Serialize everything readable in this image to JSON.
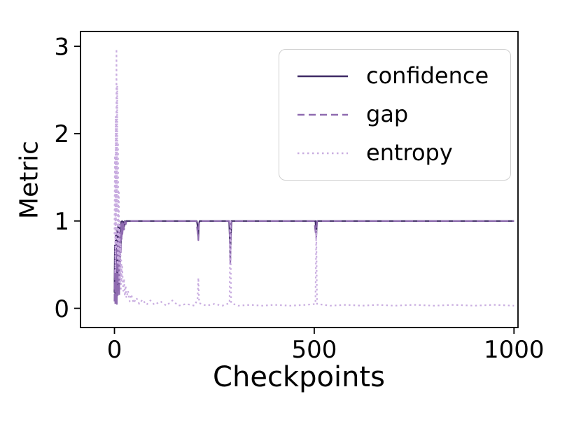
{
  "figure": {
    "background": "#ffffff"
  },
  "chart_data": {
    "type": "line",
    "title": "",
    "xlabel": "Checkpoints",
    "ylabel": "Metric",
    "xlim": [
      -85,
      1010
    ],
    "ylim": [
      -0.22,
      3.17
    ],
    "xticks": [
      0,
      500,
      1000
    ],
    "yticks": [
      0,
      1,
      2,
      3
    ],
    "grid": false,
    "legend": {
      "position": "upper right",
      "entries": [
        "confidence",
        "gap",
        "entropy"
      ]
    },
    "axis_color": "#000000",
    "series": [
      {
        "name": "confidence",
        "color": "#3f2a66",
        "style": "solid",
        "points": [
          [
            0,
            0.18
          ],
          [
            1,
            0.72
          ],
          [
            2,
            0.1
          ],
          [
            3,
            0.85
          ],
          [
            4,
            0.15
          ],
          [
            5,
            0.62
          ],
          [
            6,
            0.06
          ],
          [
            7,
            0.9
          ],
          [
            8,
            0.2
          ],
          [
            9,
            0.95
          ],
          [
            10,
            0.32
          ],
          [
            11,
            0.88
          ],
          [
            12,
            0.24
          ],
          [
            13,
            0.96
          ],
          [
            14,
            0.5
          ],
          [
            15,
            0.93
          ],
          [
            16,
            0.72
          ],
          [
            17,
            0.99
          ],
          [
            18,
            0.84
          ],
          [
            19,
            1.0
          ],
          [
            20,
            0.9
          ],
          [
            22,
            0.99
          ],
          [
            24,
            0.93
          ],
          [
            26,
            1.0
          ],
          [
            28,
            0.98
          ],
          [
            30,
            1.0
          ],
          [
            40,
            1.0
          ],
          [
            60,
            1.0
          ],
          [
            80,
            1.0
          ],
          [
            100,
            1.0
          ],
          [
            140,
            1.0
          ],
          [
            180,
            1.0
          ],
          [
            206,
            1.0
          ],
          [
            209,
            0.92
          ],
          [
            210,
            0.8
          ],
          [
            211,
            0.95
          ],
          [
            213,
            1.0
          ],
          [
            260,
            1.0
          ],
          [
            287,
            1.0
          ],
          [
            289,
            0.75
          ],
          [
            290,
            0.55
          ],
          [
            291,
            0.8
          ],
          [
            293,
            1.0
          ],
          [
            350,
            1.0
          ],
          [
            430,
            1.0
          ],
          [
            500,
            1.0
          ],
          [
            503,
            1.0
          ],
          [
            505,
            0.83
          ],
          [
            507,
            1.0
          ],
          [
            560,
            1.0
          ],
          [
            650,
            1.0
          ],
          [
            750,
            1.0
          ],
          [
            850,
            1.0
          ],
          [
            930,
            1.0
          ],
          [
            1000,
            1.0
          ]
        ]
      },
      {
        "name": "gap",
        "color": "#8f6bb0",
        "style": "dashed",
        "points": [
          [
            0,
            0.08
          ],
          [
            1,
            0.45
          ],
          [
            2,
            0.04
          ],
          [
            3,
            0.7
          ],
          [
            4,
            0.1
          ],
          [
            5,
            0.4
          ],
          [
            6,
            0.03
          ],
          [
            7,
            0.75
          ],
          [
            8,
            0.12
          ],
          [
            9,
            0.88
          ],
          [
            10,
            0.22
          ],
          [
            11,
            0.78
          ],
          [
            12,
            0.15
          ],
          [
            13,
            0.9
          ],
          [
            14,
            0.38
          ],
          [
            15,
            0.88
          ],
          [
            16,
            0.62
          ],
          [
            17,
            0.96
          ],
          [
            18,
            0.78
          ],
          [
            19,
            0.98
          ],
          [
            20,
            0.85
          ],
          [
            22,
            0.97
          ],
          [
            24,
            0.9
          ],
          [
            26,
            0.99
          ],
          [
            28,
            0.96
          ],
          [
            30,
            0.99
          ],
          [
            40,
            1.0
          ],
          [
            60,
            1.0
          ],
          [
            100,
            1.0
          ],
          [
            150,
            1.0
          ],
          [
            205,
            1.0
          ],
          [
            210,
            0.78
          ],
          [
            212,
            1.0
          ],
          [
            288,
            1.0
          ],
          [
            290,
            0.5
          ],
          [
            292,
            1.0
          ],
          [
            400,
            1.0
          ],
          [
            500,
            1.0
          ],
          [
            505,
            0.8
          ],
          [
            507,
            1.0
          ],
          [
            600,
            1.0
          ],
          [
            700,
            1.0
          ],
          [
            800,
            1.0
          ],
          [
            900,
            1.0
          ],
          [
            1000,
            1.0
          ]
        ]
      },
      {
        "name": "entropy",
        "color": "#c9ade0",
        "style": "dotted",
        "points": [
          [
            0,
            0.85
          ],
          [
            1,
            1.75
          ],
          [
            2,
            0.4
          ],
          [
            3,
            2.2
          ],
          [
            4,
            0.7
          ],
          [
            5,
            2.97
          ],
          [
            6,
            1.1
          ],
          [
            7,
            2.55
          ],
          [
            8,
            0.5
          ],
          [
            9,
            1.9
          ],
          [
            10,
            0.55
          ],
          [
            11,
            1.35
          ],
          [
            12,
            0.3
          ],
          [
            13,
            1.0
          ],
          [
            14,
            0.28
          ],
          [
            15,
            0.75
          ],
          [
            16,
            0.2
          ],
          [
            17,
            0.55
          ],
          [
            18,
            0.3
          ],
          [
            19,
            0.5
          ],
          [
            20,
            0.42
          ],
          [
            22,
            0.2
          ],
          [
            24,
            0.34
          ],
          [
            26,
            0.14
          ],
          [
            28,
            0.26
          ],
          [
            30,
            0.12
          ],
          [
            34,
            0.2
          ],
          [
            38,
            0.08
          ],
          [
            42,
            0.16
          ],
          [
            48,
            0.06
          ],
          [
            55,
            0.12
          ],
          [
            62,
            0.05
          ],
          [
            70,
            0.1
          ],
          [
            80,
            0.04
          ],
          [
            90,
            0.09
          ],
          [
            100,
            0.04
          ],
          [
            115,
            0.08
          ],
          [
            130,
            0.03
          ],
          [
            145,
            0.09
          ],
          [
            160,
            0.03
          ],
          [
            180,
            0.05
          ],
          [
            200,
            0.03
          ],
          [
            208,
            0.1
          ],
          [
            210,
            0.35
          ],
          [
            212,
            0.06
          ],
          [
            230,
            0.03
          ],
          [
            250,
            0.05
          ],
          [
            270,
            0.03
          ],
          [
            288,
            0.06
          ],
          [
            290,
            1.02
          ],
          [
            292,
            0.06
          ],
          [
            310,
            0.03
          ],
          [
            340,
            0.04
          ],
          [
            370,
            0.03
          ],
          [
            400,
            0.04
          ],
          [
            440,
            0.03
          ],
          [
            480,
            0.04
          ],
          [
            503,
            0.05
          ],
          [
            505,
            0.9
          ],
          [
            507,
            0.05
          ],
          [
            540,
            0.03
          ],
          [
            580,
            0.04
          ],
          [
            620,
            0.03
          ],
          [
            660,
            0.04
          ],
          [
            700,
            0.03
          ],
          [
            750,
            0.04
          ],
          [
            800,
            0.03
          ],
          [
            850,
            0.04
          ],
          [
            900,
            0.03
          ],
          [
            950,
            0.04
          ],
          [
            1000,
            0.03
          ]
        ]
      }
    ]
  }
}
